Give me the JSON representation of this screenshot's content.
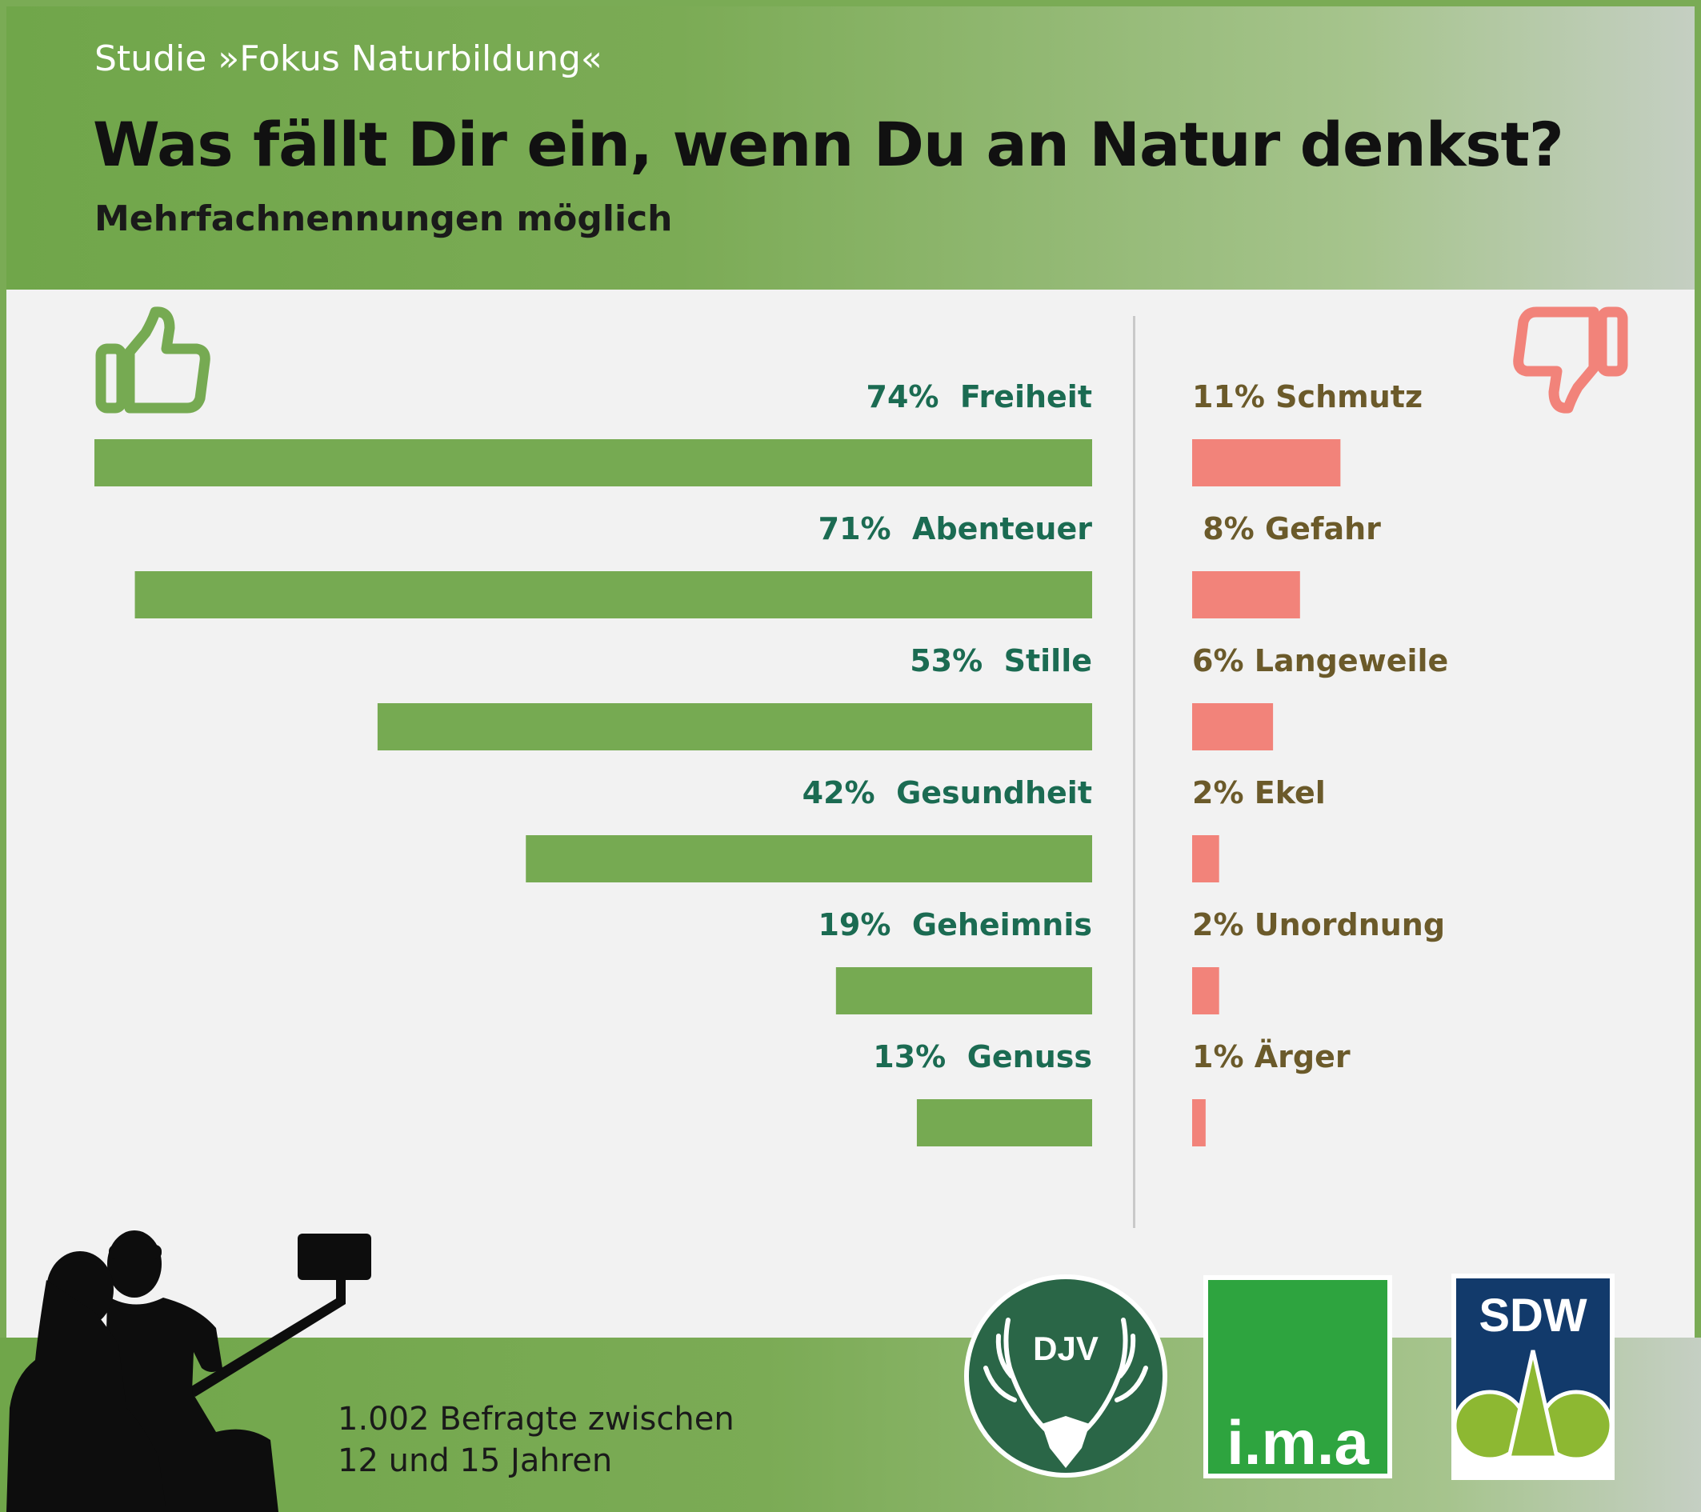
{
  "header": {
    "study": "Studie »Fokus Naturbildung«",
    "title": "Was fällt Dir ein, wenn Du an Natur denkst?",
    "subtitle": "Mehrfachnennungen möglich"
  },
  "colors": {
    "positive_bar": "#76aa52",
    "negative_bar": "#f2837a",
    "positive_text": "#1b6b52",
    "negative_text": "#6b5a2a"
  },
  "icons": {
    "positive": "thumbs-up-icon",
    "negative": "thumbs-down-icon"
  },
  "chart_data": {
    "type": "bar",
    "title": "Was fällt Dir ein, wenn Du an Natur denkst?",
    "subtitle": "Mehrfachnennungen möglich",
    "unit": "%",
    "xlim": [
      0,
      74
    ],
    "series": [
      {
        "name": "positive",
        "categories": [
          "Freiheit",
          "Abenteuer",
          "Stille",
          "Gesundheit",
          "Geheimnis",
          "Genuss"
        ],
        "values": [
          74,
          71,
          53,
          42,
          19,
          13
        ],
        "labels": [
          "74%  Freiheit",
          "71%  Abenteuer",
          "53%  Stille",
          "42%  Gesundheit",
          "19%  Geheimnis",
          "13%  Genuss"
        ]
      },
      {
        "name": "negative",
        "categories": [
          "Schmutz",
          "Gefahr",
          "Langeweile",
          "Ekel",
          "Unordnung",
          "Ärger"
        ],
        "values": [
          11,
          8,
          6,
          2,
          2,
          1
        ],
        "labels": [
          "11% Schmutz",
          " 8% Gefahr",
          "6% Langeweile",
          "2% Ekel",
          "2% Unordnung",
          "1% Ärger"
        ]
      }
    ]
  },
  "footer": {
    "respondents_line1": "1.002 Befragte zwischen",
    "respondents_line2": "12 und 15 Jahren"
  },
  "logos": {
    "djv": "DJV",
    "ima": "i.m.a",
    "sdw": "SDW"
  }
}
